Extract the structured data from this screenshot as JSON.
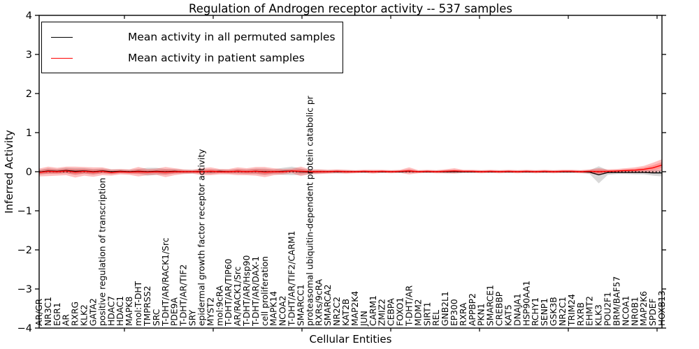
{
  "title": "Regulation of Androgen receptor activity -- 537 samples",
  "legend": {
    "items": [
      {
        "label": "Mean activity in all permuted samples",
        "color": "#000000"
      },
      {
        "label": "Mean activity in patient samples",
        "color": "#ff0000"
      }
    ]
  },
  "colors": {
    "permuted_line": "#000000",
    "patient_line": "#ff0000",
    "permuted_band": "#000000",
    "patient_band": "#ff0000",
    "zero_line": "#000000"
  },
  "chart_data": {
    "type": "line",
    "title": "Regulation of Androgen receptor activity -- 537 samples",
    "xlabel": "Cellular Entities",
    "ylabel": "Inferred Activity",
    "ylim": [
      -4,
      4
    ],
    "yticks": [
      4,
      3,
      2,
      1,
      0,
      -1,
      -2,
      -3,
      -4
    ],
    "grid": false,
    "zero_line_style": "dotted",
    "legend_position": "upper left",
    "categories": [
      "AR/GR",
      "NR3C1",
      "EGR1",
      "AR",
      "RXRG",
      "KLK2",
      "GATA2",
      "positive regulation of transcription",
      "HDAC7",
      "HDAC1",
      "MAPK8",
      "mol:T-DHT",
      "TMPRSS2",
      "SRC",
      "T-DHT/AR/RACK1/Src",
      "PDE9A",
      "T-DHT/AR/TIF2",
      "SRY",
      "epidermal growth factor receptor activity",
      "MYST2",
      "mol:9cRA",
      "T-DHT/AR/TIP60",
      "AR/RACK1/Src",
      "T-DHT/AR/Hsp90",
      "T-DHT/AR/DAX-1",
      "cell proliferation",
      "MAPK14",
      "NCOA2",
      "T-DHT/AR/TIF2/CARM1",
      "SMARCC1",
      "proteasomal ubiquitin-dependent protein catabolic pr",
      "RXRs/9cRA",
      "SMARCA2",
      "NR2C2",
      "KAT2B",
      "MAP2K4",
      "JUN",
      "CARM1",
      "ZMIZ2",
      "CEBPA",
      "FOXO1",
      "T-DHT/AR",
      "MDM2",
      "SIRT1",
      "REL",
      "GNB2L1",
      "EP300",
      "RXRA",
      "APPBP2",
      "PKN1",
      "SMARCE1",
      "CREBBP",
      "KAT5",
      "DNAJA1",
      "HSP90AA1",
      "RCHY1",
      "SENP1",
      "GSK3B",
      "NR2C1",
      "TRIM24",
      "RXRB",
      "EHMT2",
      "KLK3",
      "POU2F1",
      "BRM/BAF57",
      "NCOA1",
      "NR0B1",
      "MAP2K6",
      "SPDEF",
      "HOXB13"
    ],
    "series": [
      {
        "name": "Mean activity in all permuted samples",
        "color": "#000000",
        "values": [
          -0.01,
          0.02,
          0.01,
          0.03,
          0.01,
          0.02,
          0,
          0.02,
          0,
          0.01,
          0,
          0.01,
          0,
          0.01,
          0,
          0.01,
          0,
          0,
          0.01,
          0,
          0.01,
          0,
          0.01,
          0,
          0.01,
          0,
          0,
          0.01,
          0.02,
          0,
          -0.01,
          0,
          0,
          0,
          0,
          0,
          0,
          0,
          0,
          0,
          0,
          0.01,
          0,
          0,
          0,
          0,
          0,
          0,
          0,
          0,
          0,
          0,
          0,
          0,
          0,
          0,
          0,
          0,
          0,
          0,
          0,
          -0.01,
          -0.08,
          -0.02,
          -0.02,
          -0.02,
          -0.02,
          -0.02,
          -0.03,
          -0.03
        ],
        "band_halfwidth": [
          0.06,
          0.07,
          0.06,
          0.07,
          0.08,
          0.07,
          0.07,
          0.06,
          0.06,
          0.05,
          0.05,
          0.06,
          0.1,
          0.09,
          0.07,
          0.06,
          0.05,
          0.05,
          0.05,
          0.06,
          0.05,
          0.05,
          0.06,
          0.06,
          0.07,
          0.08,
          0.06,
          0.09,
          0.11,
          0.08,
          0.06,
          0.05,
          0.04,
          0.04,
          0.04,
          0.03,
          0.03,
          0.03,
          0.03,
          0.03,
          0.03,
          0.04,
          0.03,
          0.03,
          0.03,
          0.04,
          0.03,
          0.03,
          0.03,
          0.03,
          0.03,
          0.03,
          0.03,
          0.03,
          0.03,
          0.03,
          0.03,
          0.03,
          0.03,
          0.03,
          0.03,
          0.05,
          0.22,
          0.06,
          0.04,
          0.04,
          0.05,
          0.05,
          0.07,
          0.09
        ]
      },
      {
        "name": "Mean activity in patient samples",
        "color": "#ff0000",
        "values": [
          -0.02,
          0.01,
          0,
          0.02,
          -0.01,
          0.01,
          -0.01,
          0.01,
          -0.02,
          0,
          -0.01,
          0,
          -0.01,
          0,
          -0.01,
          0,
          0,
          0,
          0,
          0.01,
          0,
          0,
          0.01,
          0,
          0.01,
          -0.01,
          0,
          0,
          0.02,
          0.01,
          0,
          0,
          0,
          0.01,
          0,
          0,
          0.01,
          0,
          0.01,
          0,
          0.01,
          0.02,
          0,
          0.01,
          0,
          0.01,
          0.02,
          0.01,
          0.01,
          0,
          0.01,
          0,
          0.01,
          0,
          0.01,
          0,
          0.01,
          0,
          0.01,
          0.01,
          0,
          0.01,
          0,
          0.01,
          0.02,
          0.03,
          0.04,
          0.06,
          0.1,
          0.17
        ],
        "band_halfwidth": [
          0.1,
          0.12,
          0.1,
          0.11,
          0.14,
          0.11,
          0.12,
          0.1,
          0.08,
          0.07,
          0.07,
          0.12,
          0.08,
          0.08,
          0.13,
          0.09,
          0.06,
          0.05,
          0.09,
          0.1,
          0.07,
          0.07,
          0.1,
          0.09,
          0.11,
          0.13,
          0.09,
          0.07,
          0.06,
          0.12,
          0.06,
          0.06,
          0.05,
          0.05,
          0.05,
          0.04,
          0.04,
          0.05,
          0.04,
          0.04,
          0.04,
          0.09,
          0.04,
          0.04,
          0.04,
          0.05,
          0.07,
          0.04,
          0.04,
          0.04,
          0.04,
          0.04,
          0.04,
          0.04,
          0.04,
          0.04,
          0.04,
          0.04,
          0.04,
          0.04,
          0.04,
          0.05,
          0.09,
          0.05,
          0.05,
          0.06,
          0.07,
          0.09,
          0.13,
          0.15
        ]
      }
    ]
  }
}
